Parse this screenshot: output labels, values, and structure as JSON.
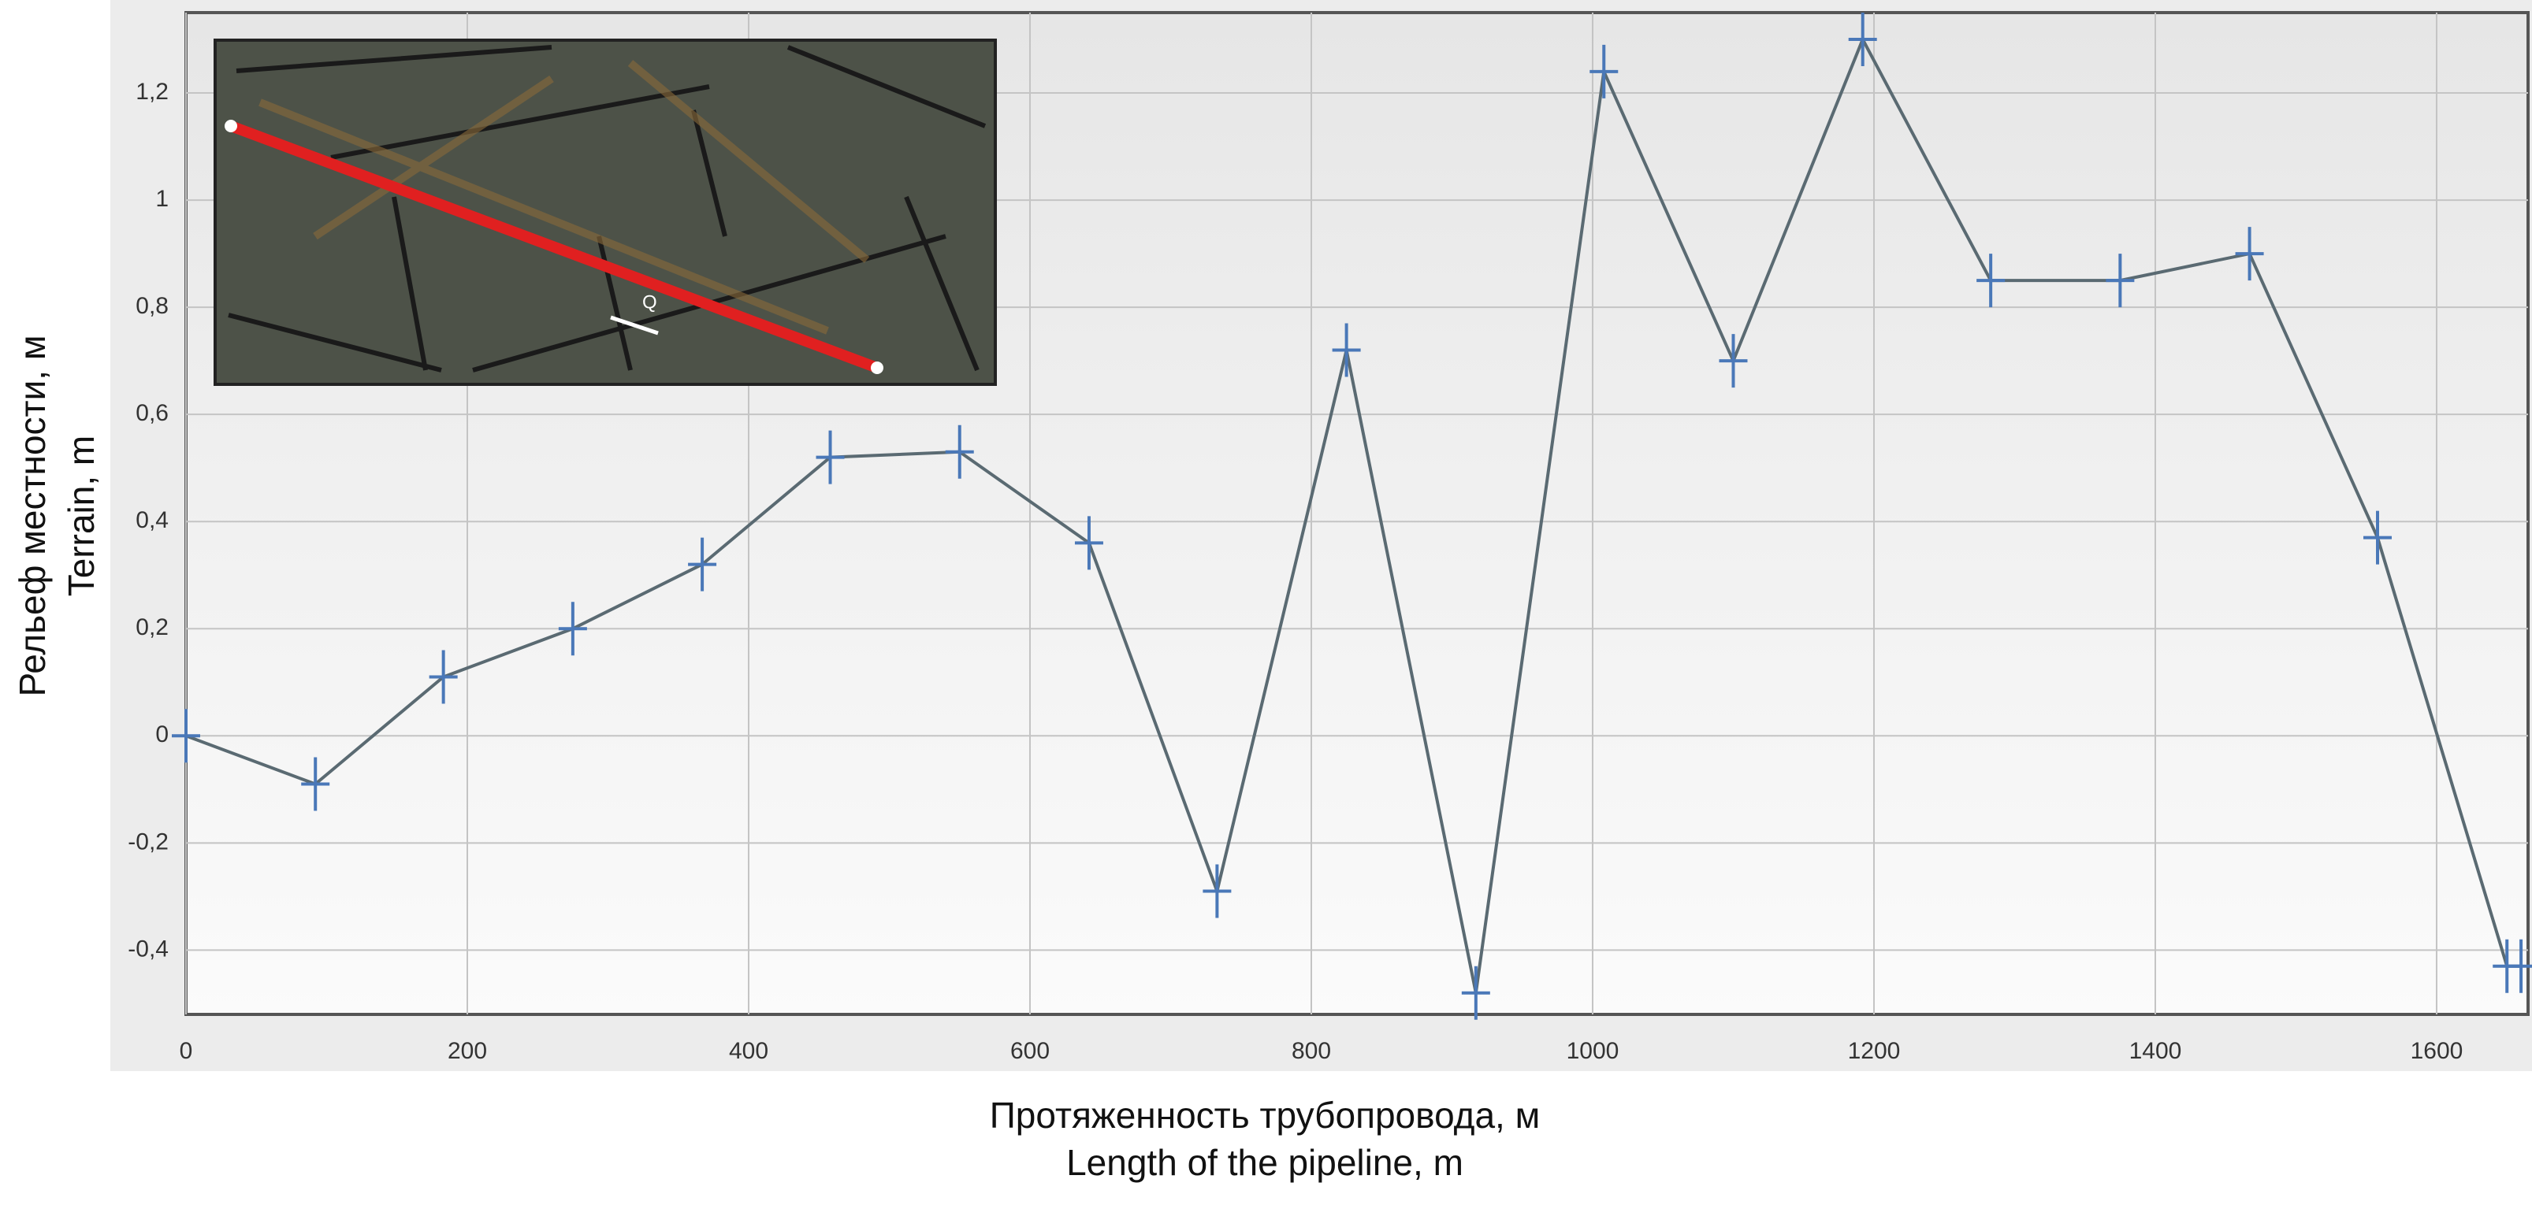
{
  "chart_data": {
    "type": "line",
    "x_label": [
      "Протяженность трубопровода, м",
      "Length of the pipeline, m"
    ],
    "y_label": [
      "Рельеф местности, м",
      "Terrain, m"
    ],
    "inset_label": "Q",
    "x": [
      0,
      92,
      183,
      275,
      367,
      458,
      550,
      642,
      733,
      825,
      917,
      1008,
      1100,
      1192,
      1283,
      1375,
      1467,
      1558,
      1650,
      1660
    ],
    "series": [
      {
        "color": "#5a6a72",
        "marker_color": "#4a78b8",
        "values": [
          0,
          -0.09,
          0.11,
          0.2,
          0.32,
          0.52,
          0.53,
          0.36,
          -0.29,
          0.72,
          -0.48,
          1.24,
          0.7,
          1.3,
          0.85,
          0.85,
          0.9,
          0.37,
          -0.43,
          -0.43
        ]
      }
    ],
    "xlim": [
      0,
      1665
    ],
    "ylim": [
      -0.52,
      1.35
    ],
    "xticks": [
      0,
      200,
      400,
      600,
      800,
      1000,
      1200,
      1400,
      1600
    ],
    "yticks": [
      {
        "value": -0.4,
        "label": "-0,4"
      },
      {
        "value": -0.2,
        "label": "-0,2"
      },
      0,
      {
        "value": 0.2,
        "label": "0,2"
      },
      {
        "value": 0.4,
        "label": "0,4"
      },
      {
        "value": 0.6,
        "label": "0,6"
      },
      {
        "value": 0.8,
        "label": "0,8"
      },
      1,
      {
        "value": 1.2,
        "label": "1,2"
      }
    ],
    "grid": true
  }
}
